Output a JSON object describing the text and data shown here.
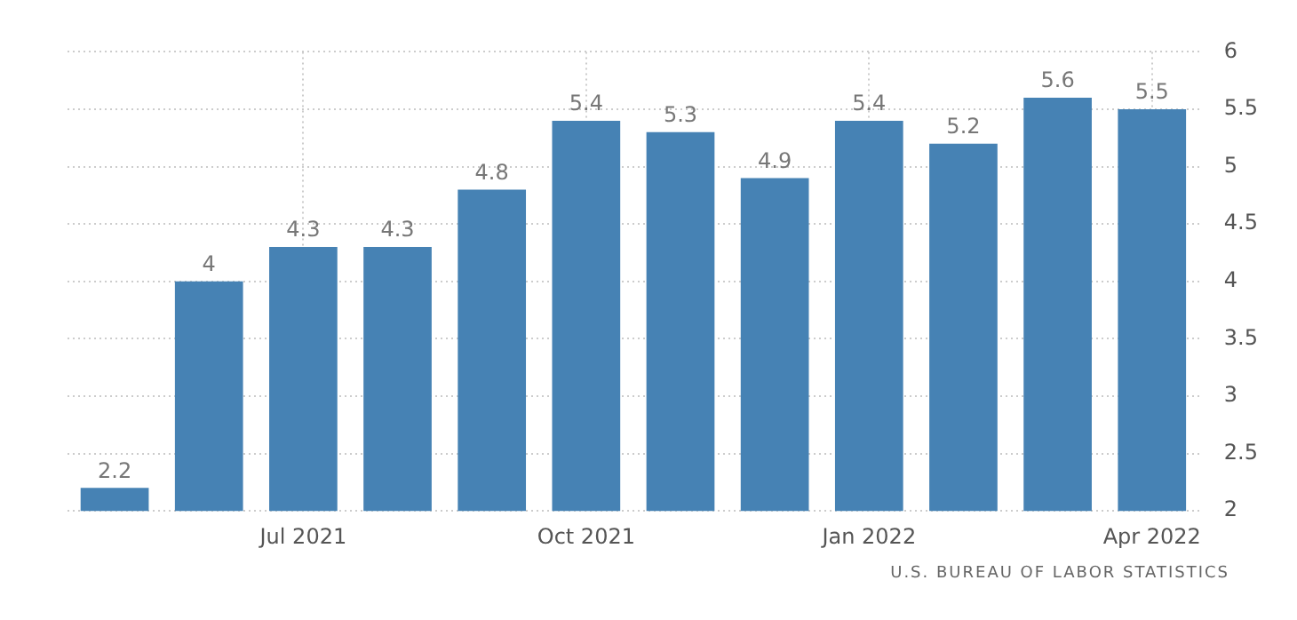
{
  "chart_data": {
    "type": "bar",
    "categories": [
      null,
      null,
      "Jul 2021",
      null,
      null,
      "Oct 2021",
      null,
      null,
      "Jan 2022",
      null,
      null,
      "Apr 2022"
    ],
    "values": [
      2.2,
      4,
      4.3,
      4.3,
      4.8,
      5.4,
      5.3,
      4.9,
      5.4,
      5.2,
      5.6,
      5.5
    ],
    "color": "#4682b4",
    "ylim": [
      2,
      6
    ],
    "yticks": [
      2,
      2.5,
      3,
      3.5,
      4,
      4.5,
      5,
      5.5,
      6
    ],
    "grid": true,
    "data_labels": true,
    "annotations": [
      "U.S. BUREAU OF LABOR STATISTICS"
    ]
  }
}
